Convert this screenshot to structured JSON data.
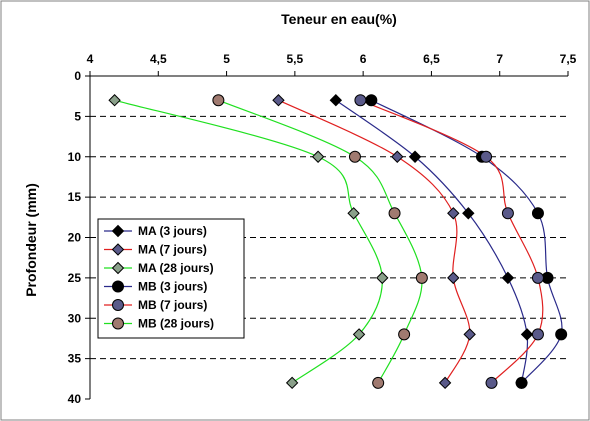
{
  "chart_data": {
    "type": "line",
    "title": "Teneur en eau(%)",
    "xlabel": "Teneur en eau(%)",
    "ylabel": "Profondeur (mm)",
    "xlim": [
      4,
      7.5
    ],
    "ylim": [
      0,
      40
    ],
    "y_reversed": true,
    "x_axis_position": "top",
    "x_ticks": [
      4,
      4.5,
      5,
      5.5,
      6,
      6.5,
      7,
      7.5
    ],
    "x_tick_labels": [
      "4",
      "4,5",
      "5",
      "5,5",
      "6",
      "6,5",
      "7",
      "7,5"
    ],
    "y_ticks": [
      0,
      5,
      10,
      15,
      20,
      25,
      30,
      35,
      40
    ],
    "y_tick_labels": [
      "0",
      "5",
      "10",
      "15",
      "20",
      "25",
      "30",
      "35",
      "40"
    ],
    "grid": "horizontal-dashed",
    "legend_position": "lower-left",
    "series": [
      {
        "name": "MA (3 jours)",
        "marker": "diamond",
        "marker_color": "#000000",
        "line_color": "#2a2a8a",
        "points": [
          [
            5.8,
            3
          ],
          [
            6.38,
            10
          ],
          [
            6.77,
            17
          ],
          [
            7.06,
            25
          ],
          [
            7.2,
            32
          ],
          [
            7.16,
            38
          ]
        ]
      },
      {
        "name": "MA (7 jours)",
        "marker": "diamond",
        "marker_color": "#5a5a8a",
        "line_color": "#e02020",
        "points": [
          [
            5.38,
            3
          ],
          [
            6.25,
            10
          ],
          [
            6.66,
            17
          ],
          [
            6.66,
            25
          ],
          [
            6.78,
            32
          ],
          [
            6.6,
            38
          ]
        ]
      },
      {
        "name": "MA (28 jours)",
        "marker": "diamond",
        "marker_color": "#8aa08a",
        "line_color": "#20e020",
        "points": [
          [
            4.18,
            3
          ],
          [
            5.67,
            10
          ],
          [
            5.93,
            17
          ],
          [
            6.14,
            25
          ],
          [
            5.97,
            32
          ],
          [
            5.48,
            38
          ]
        ]
      },
      {
        "name": "MB (3 jours)",
        "marker": "circle",
        "marker_color": "#000000",
        "line_color": "#2a2a8a",
        "points": [
          [
            6.06,
            3
          ],
          [
            6.87,
            10
          ],
          [
            7.28,
            17
          ],
          [
            7.35,
            25
          ],
          [
            7.45,
            32
          ],
          [
            7.16,
            38
          ]
        ]
      },
      {
        "name": "MB (7 jours)",
        "marker": "circle",
        "marker_color": "#5a5a8a",
        "line_color": "#e02020",
        "points": [
          [
            5.98,
            3
          ],
          [
            6.9,
            10
          ],
          [
            7.06,
            17
          ],
          [
            7.28,
            25
          ],
          [
            7.28,
            32
          ],
          [
            6.94,
            38
          ]
        ]
      },
      {
        "name": "MB (28 jours)",
        "marker": "circle",
        "marker_color": "#a07a70",
        "line_color": "#20e020",
        "points": [
          [
            4.94,
            3
          ],
          [
            5.94,
            10
          ],
          [
            6.23,
            17
          ],
          [
            6.43,
            25
          ],
          [
            6.3,
            32
          ],
          [
            6.11,
            38
          ]
        ]
      }
    ]
  }
}
